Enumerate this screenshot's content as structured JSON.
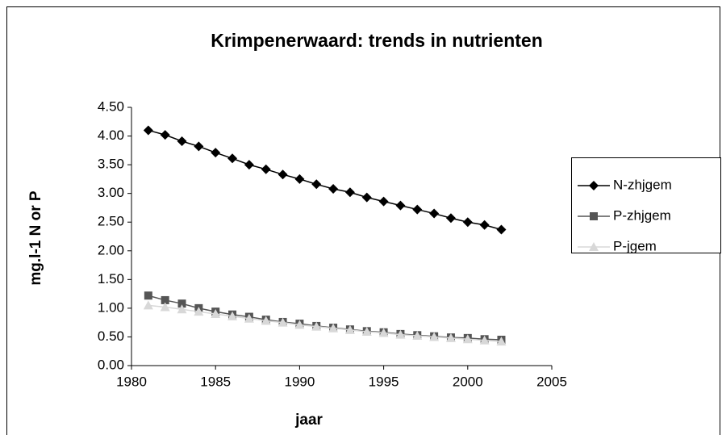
{
  "chart_data": {
    "type": "line",
    "title": "Krimpenerwaard: trends in nutrienten",
    "xlabel": "jaar",
    "ylabel": "mg.l-1 N or P",
    "x": [
      1981,
      1982,
      1983,
      1984,
      1985,
      1986,
      1987,
      1988,
      1989,
      1990,
      1991,
      1992,
      1993,
      1994,
      1995,
      1996,
      1997,
      1998,
      1999,
      2000,
      2001,
      2002
    ],
    "series": [
      {
        "name": "N-zhjgem",
        "color": "#000000",
        "marker": "diamond",
        "values": [
          4.1,
          4.02,
          3.91,
          3.82,
          3.71,
          3.61,
          3.5,
          3.42,
          3.33,
          3.25,
          3.16,
          3.08,
          3.02,
          2.93,
          2.86,
          2.79,
          2.72,
          2.65,
          2.57,
          2.5,
          2.45,
          2.37
        ]
      },
      {
        "name": "P-zhjgem",
        "color": "#555555",
        "marker": "square",
        "values": [
          1.22,
          1.14,
          1.08,
          1.0,
          0.94,
          0.89,
          0.85,
          0.8,
          0.76,
          0.73,
          0.69,
          0.66,
          0.63,
          0.6,
          0.58,
          0.55,
          0.53,
          0.51,
          0.49,
          0.48,
          0.46,
          0.45
        ]
      },
      {
        "name": "P-jgem",
        "color": "#d8d8d8",
        "marker": "triangle",
        "values": [
          1.05,
          1.02,
          0.98,
          0.94,
          0.9,
          0.86,
          0.82,
          0.78,
          0.75,
          0.71,
          0.68,
          0.65,
          0.62,
          0.59,
          0.57,
          0.54,
          0.52,
          0.5,
          0.48,
          0.46,
          0.44,
          0.42
        ]
      }
    ],
    "xlim": [
      1980,
      2005
    ],
    "xticks": [
      1980,
      1985,
      1990,
      1995,
      2000,
      2005
    ],
    "ylim": [
      0,
      4.5
    ],
    "yticks": [
      {
        "value": 0,
        "label": "0.00"
      },
      {
        "value": 0.5,
        "label": "0.50"
      },
      {
        "value": 1,
        "label": "1.00"
      },
      {
        "value": 1.5,
        "label": "1.50"
      },
      {
        "value": 2,
        "label": "2.00"
      },
      {
        "value": 2.5,
        "label": "2.50"
      },
      {
        "value": 3,
        "label": "3.00"
      },
      {
        "value": 3.5,
        "label": "3.50"
      },
      {
        "value": 4,
        "label": "4.00"
      },
      {
        "value": 4.5,
        "label": "4.50"
      }
    ],
    "legend": "right"
  }
}
